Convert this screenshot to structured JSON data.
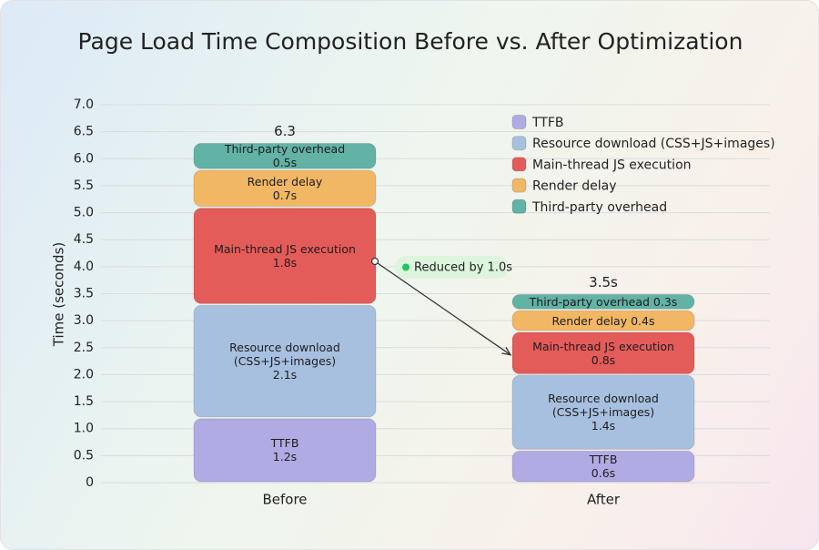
{
  "chart_data": {
    "type": "stacked-bar",
    "title": "Page Load Time Composition Before vs. After Optimization",
    "y_label": "Time (seconds)",
    "categories": [
      "Before",
      "After"
    ],
    "series": [
      {
        "name": "TTFB",
        "color": "#b1abe4",
        "values": [
          1.2,
          0.6
        ],
        "value_labels": [
          "1.2s",
          "0.6s"
        ]
      },
      {
        "name": "Resource download (CSS+JS+images)",
        "color": "#a8c0df",
        "values": [
          2.1,
          1.4
        ],
        "value_labels": [
          "2.1s",
          "1.4s"
        ]
      },
      {
        "name": "Main-thread JS execution",
        "color": "#e45c5a",
        "values": [
          1.8,
          0.8
        ],
        "value_labels": [
          "1.8s",
          "0.8s"
        ]
      },
      {
        "name": "Render delay",
        "color": "#f1b765",
        "values": [
          0.7,
          0.4
        ],
        "value_labels": [
          "0.7s",
          "0.4s"
        ]
      },
      {
        "name": "Third-party overhead",
        "color": "#62b2a6",
        "values": [
          0.5,
          0.3
        ],
        "value_labels": [
          "0.5s",
          "0.3s"
        ]
      }
    ],
    "totals": {
      "values": [
        6.3,
        3.5
      ],
      "value_labels": [
        "6.3",
        "3.5s"
      ]
    },
    "annotation": "Reduced by 1.0s",
    "ylim": [
      0,
      7
    ],
    "yticks": [
      0,
      0.5,
      {
        "value": 1,
        "label": "1.0"
      },
      1.5,
      {
        "value": 2,
        "label": "2.0"
      },
      2.5,
      {
        "value": 3,
        "label": "3.0"
      },
      3.5,
      {
        "value": 4,
        "label": "4.0"
      },
      4.5,
      {
        "value": 5,
        "label": "5.0"
      },
      5.5,
      {
        "value": 6,
        "label": "6.0"
      },
      6.5,
      {
        "value": 7,
        "label": "7.0"
      }
    ],
    "grid": true,
    "legend": "top-right"
  }
}
